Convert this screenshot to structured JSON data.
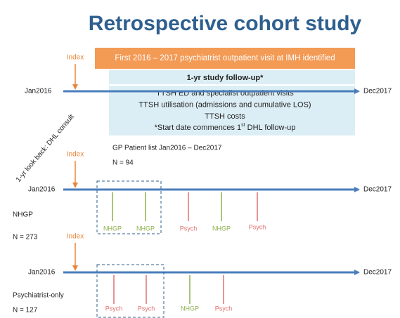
{
  "title": "Retrospective cohort study",
  "top_box": "First 2016 – 2017 psychiatrist outpatient visit at IMH identified",
  "followup": {
    "header": "1-yr study follow-up*",
    "lines": [
      "TTSH ED and specialist outpatient visits",
      "TTSH utilisation (admissions and cumulative LOS)",
      "TTSH costs"
    ],
    "note": [
      "*Start date commences 1",
      "st",
      " DHL follow-up"
    ]
  },
  "lookback": "1-yr look back: DHL consult",
  "gp": {
    "label": "GP Patient list Jan2016 – Dec2017",
    "n": "N = 94"
  },
  "timelines": [
    {
      "index": "Index",
      "start": "Jan2016",
      "end": "Dec2017"
    },
    {
      "index": "Index",
      "start": "Jan2016",
      "end": "Dec2017",
      "group": "NHGP",
      "n": "N = 273",
      "events": [
        "NHGP",
        "NHGP",
        "Psych",
        "NHGP",
        "Psych"
      ]
    },
    {
      "index": "Index",
      "start": "Jan2016",
      "end": "Dec2017",
      "group": "Psychiatrist-only",
      "n": "N = 127",
      "events": [
        "Psych",
        "Psych",
        "NHGP",
        "Psych"
      ]
    }
  ]
}
